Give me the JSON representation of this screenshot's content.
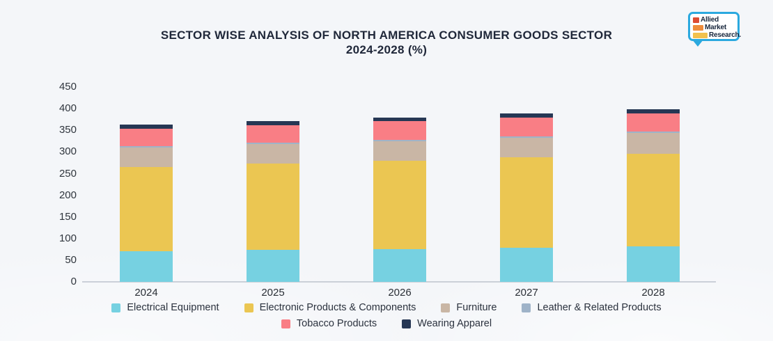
{
  "page": {
    "title_line1": "SECTOR WISE ANALYSIS OF NORTH AMERICA CONSUMER GOODS SECTOR",
    "title_line2": "2024-2028 (%)"
  },
  "logo": {
    "lines": [
      "Allied",
      "Market",
      "Research."
    ],
    "bubble_color": "#2BA9DF",
    "square_colors": [
      "#DD4C33",
      "#EE8C3C",
      "#F2C14E"
    ]
  },
  "chart_data": {
    "type": "bar",
    "variant": "stacked",
    "title": "SECTOR WISE ANALYSIS OF NORTH AMERICA CONSUMER GOODS SECTOR 2024-2028 (%)",
    "categories": [
      "2024",
      "2025",
      "2026",
      "2027",
      "2028"
    ],
    "series": [
      {
        "name": "Electrical Equipment",
        "color": "#76D1E1",
        "values": [
          70,
          74,
          76,
          79,
          82
        ]
      },
      {
        "name": "Electronic Products & Components",
        "color": "#EBC652",
        "values": [
          195,
          199,
          204,
          209,
          213
        ]
      },
      {
        "name": "Furniture",
        "color": "#C9B6A5",
        "values": [
          45,
          45,
          45,
          45,
          49
        ]
      },
      {
        "name": "Leather & Related Products",
        "color": "#9FB3C8",
        "values": [
          3,
          3,
          3,
          3,
          3
        ]
      },
      {
        "name": "Tobacco Products",
        "color": "#F97E85",
        "values": [
          40,
          41,
          43,
          44,
          42
        ]
      },
      {
        "name": "Wearing Apparel",
        "color": "#263754",
        "values": [
          10,
          9,
          9,
          9,
          9
        ]
      }
    ],
    "totals": [
      363,
      371,
      380,
      389,
      398
    ],
    "xlabel": "",
    "ylabel": "",
    "ylim": [
      0,
      450
    ],
    "ytick_step": 50,
    "grid": false,
    "legend_position": "bottom",
    "legend_rows": [
      [
        0,
        1,
        2,
        3
      ],
      [
        4,
        5
      ]
    ]
  }
}
